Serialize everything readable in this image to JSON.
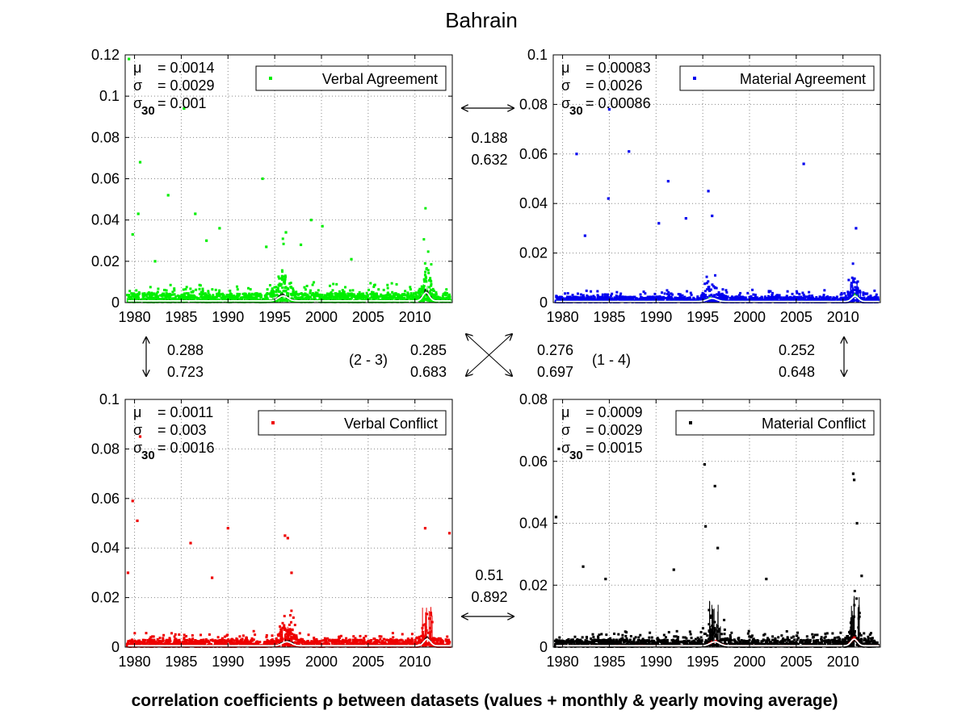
{
  "figure": {
    "title": "Bahrain",
    "footer": "correlation coefficients ρ between datasets (values + monthly & yearly moving average)"
  },
  "correlations": {
    "top": {
      "r1": "0.188",
      "r2": "0.632"
    },
    "left": {
      "r1": "0.288",
      "r2": "0.723"
    },
    "right": {
      "r1": "0.252",
      "r2": "0.648"
    },
    "bottom": {
      "r1": "0.51",
      "r2": "0.892"
    },
    "diag_left": {
      "label": "(2 - 3)",
      "r1": "0.285",
      "r2": "0.683"
    },
    "diag_right": {
      "label": "(1 - 4)",
      "r1": "0.276",
      "r2": "0.697"
    }
  },
  "chart_data": [
    {
      "type": "scatter",
      "legend": "Verbal Agreement",
      "legend_position": "top-right",
      "color": "#00ee00",
      "stats": [
        {
          "sym": "μ",
          "sub": "",
          "val": "= 0.0014"
        },
        {
          "sym": "σ",
          "sub": "",
          "val": "= 0.0029"
        },
        {
          "sym": "σ",
          "sub": "30",
          "val": "= 0.001"
        }
      ],
      "xlim": [
        1979,
        2014
      ],
      "ylim": [
        0,
        0.12
      ],
      "xticks": [
        "1980",
        "1985",
        "1990",
        "1995",
        "2000",
        "2005",
        "2010"
      ],
      "yticks": [
        "0",
        "0.02",
        "0.04",
        "0.06",
        "0.08",
        "0.1",
        "0.12"
      ],
      "grid": true,
      "baseline": 0.0015,
      "outliers": [
        [
          1979.4,
          0.118
        ],
        [
          1979.8,
          0.033
        ],
        [
          1980.4,
          0.043
        ],
        [
          1980.6,
          0.068
        ],
        [
          1982.2,
          0.02
        ],
        [
          1983.6,
          0.052
        ],
        [
          1985.3,
          0.094
        ],
        [
          1986.5,
          0.043
        ],
        [
          1987.7,
          0.03
        ],
        [
          1989.1,
          0.036
        ],
        [
          1993.7,
          0.06
        ],
        [
          1994.1,
          0.027
        ],
        [
          1996.2,
          0.034
        ],
        [
          1997.8,
          0.028
        ],
        [
          1998.9,
          0.04
        ],
        [
          2000.1,
          0.037
        ],
        [
          2003.2,
          0.021
        ]
      ],
      "spikes": [
        [
          1995.9,
          0.003
        ],
        [
          2011.2,
          0.006
        ]
      ]
    },
    {
      "type": "scatter",
      "legend": "Material Agreement",
      "legend_position": "top-right",
      "color": "#0000ee",
      "stats": [
        {
          "sym": "μ",
          "sub": "",
          "val": "= 0.00083"
        },
        {
          "sym": "σ",
          "sub": "",
          "val": "= 0.0026"
        },
        {
          "sym": "σ",
          "sub": "30",
          "val": "= 0.00086"
        }
      ],
      "xlim": [
        1979,
        2014
      ],
      "ylim": [
        0,
        0.1
      ],
      "xticks": [
        "1980",
        "1985",
        "1990",
        "1995",
        "2000",
        "2005",
        "2010"
      ],
      "yticks": [
        "0",
        "0.02",
        "0.04",
        "0.06",
        "0.08",
        "0.1"
      ],
      "grid": true,
      "baseline": 0.0008,
      "outliers": [
        [
          1981.5,
          0.06
        ],
        [
          1982.4,
          0.027
        ],
        [
          1984.9,
          0.042
        ],
        [
          1985.0,
          0.078
        ],
        [
          1987.1,
          0.061
        ],
        [
          1990.3,
          0.032
        ],
        [
          1991.3,
          0.049
        ],
        [
          1993.2,
          0.034
        ],
        [
          1995.6,
          0.045
        ],
        [
          1996.0,
          0.035
        ],
        [
          2005.8,
          0.056
        ],
        [
          2011.4,
          0.03
        ]
      ],
      "spikes": [
        [
          1996.0,
          0.002
        ],
        [
          2011.3,
          0.006
        ]
      ]
    },
    {
      "type": "scatter",
      "legend": "Verbal Conflict",
      "legend_position": "top-right",
      "color": "#ee0000",
      "stats": [
        {
          "sym": "μ",
          "sub": "",
          "val": "= 0.0011"
        },
        {
          "sym": "σ",
          "sub": "",
          "val": "= 0.003"
        },
        {
          "sym": "σ",
          "sub": "30",
          "val": "= 0.0016"
        }
      ],
      "xlim": [
        1979,
        2014
      ],
      "ylim": [
        0,
        0.1
      ],
      "xticks": [
        "1980",
        "1985",
        "1990",
        "1995",
        "2000",
        "2005",
        "2010"
      ],
      "yticks": [
        "0",
        "0.02",
        "0.04",
        "0.06",
        "0.08",
        "0.1"
      ],
      "grid": true,
      "baseline": 0.001,
      "outliers": [
        [
          1979.3,
          0.03
        ],
        [
          1979.8,
          0.059
        ],
        [
          1980.3,
          0.051
        ],
        [
          1980.6,
          0.085
        ],
        [
          1986.0,
          0.042
        ],
        [
          1988.3,
          0.028
        ],
        [
          1990.0,
          0.048
        ],
        [
          1996.1,
          0.045
        ],
        [
          1996.4,
          0.044
        ],
        [
          1996.8,
          0.03
        ],
        [
          2011.1,
          0.048
        ],
        [
          2013.7,
          0.046
        ]
      ],
      "spikes": [
        [
          1996.3,
          0.006
        ],
        [
          2011.3,
          0.012
        ]
      ]
    },
    {
      "type": "scatter",
      "legend": "Material Conflict",
      "legend_position": "top-right",
      "color": "#000000",
      "stats": [
        {
          "sym": "μ",
          "sub": "",
          "val": "= 0.0009"
        },
        {
          "sym": "σ",
          "sub": "",
          "val": "= 0.0029"
        },
        {
          "sym": "σ",
          "sub": "30",
          "val": "= 0.0015"
        }
      ],
      "xlim": [
        1979,
        2014
      ],
      "ylim": [
        0,
        0.08
      ],
      "xticks": [
        "1980",
        "1985",
        "1990",
        "1995",
        "2000",
        "2005",
        "2010"
      ],
      "yticks": [
        "0",
        "0.02",
        "0.04",
        "0.06",
        "0.08"
      ],
      "grid": true,
      "baseline": 0.0008,
      "outliers": [
        [
          1979.3,
          0.042
        ],
        [
          1979.6,
          0.064
        ],
        [
          1982.2,
          0.026
        ],
        [
          1984.6,
          0.022
        ],
        [
          1991.9,
          0.025
        ],
        [
          1995.2,
          0.059
        ],
        [
          1995.3,
          0.039
        ],
        [
          1996.3,
          0.052
        ],
        [
          1996.6,
          0.032
        ],
        [
          2001.8,
          0.022
        ],
        [
          2011.1,
          0.056
        ],
        [
          2011.2,
          0.054
        ],
        [
          2011.5,
          0.04
        ],
        [
          2012.0,
          0.023
        ]
      ],
      "spikes": [
        [
          1996.3,
          0.01
        ],
        [
          2011.2,
          0.014
        ]
      ]
    }
  ]
}
